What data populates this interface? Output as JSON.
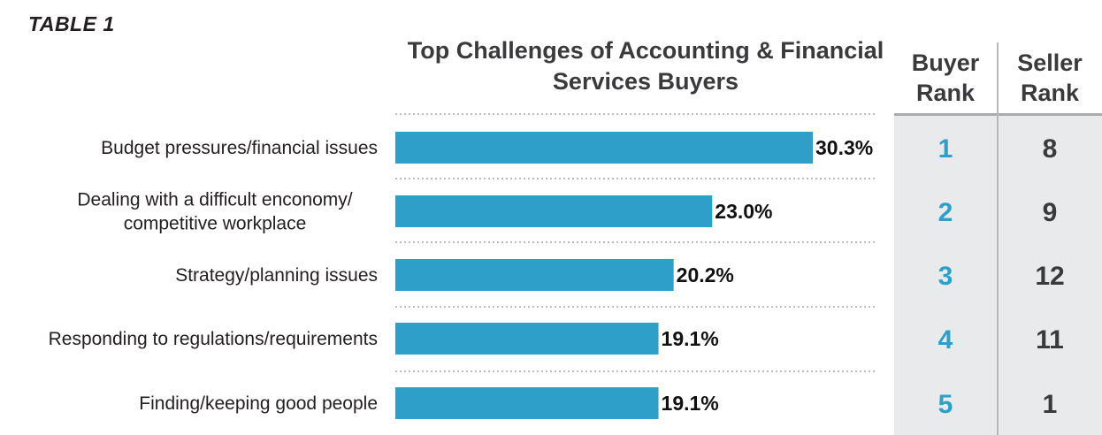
{
  "table_label": "TABLE 1",
  "colors": {
    "bar": "#2e9fc9",
    "buyer_rank": "#2e9fc9",
    "seller_rank": "#3a3a3c",
    "rank_panel": "#e9eaeb"
  },
  "columns": {
    "buyer_line1": "Buyer",
    "buyer_line2": "Rank",
    "seller_line1": "Seller",
    "seller_line2": "Rank"
  },
  "chart_data": {
    "type": "bar",
    "orientation": "horizontal",
    "title_line1": "Top Challenges of Accounting & Financial",
    "title_line2": "Services Buyers",
    "categories": [
      [
        "Budget pressures/financial issues"
      ],
      [
        "Dealing with a difficult enconomy/",
        "competitive workplace"
      ],
      [
        "Strategy/planning issues"
      ],
      [
        "Responding to regulations/requirements"
      ],
      [
        "Finding/keeping good people"
      ]
    ],
    "values": [
      30.3,
      23.0,
      20.2,
      19.1,
      19.1
    ],
    "value_labels": [
      "30.3%",
      "23.0%",
      "20.2%",
      "19.1%",
      "19.1%"
    ],
    "buyer_rank": [
      "1",
      "2",
      "3",
      "4",
      "5"
    ],
    "seller_rank": [
      "8",
      "9",
      "12",
      "11",
      "1"
    ],
    "grid": false,
    "legend": "none"
  }
}
